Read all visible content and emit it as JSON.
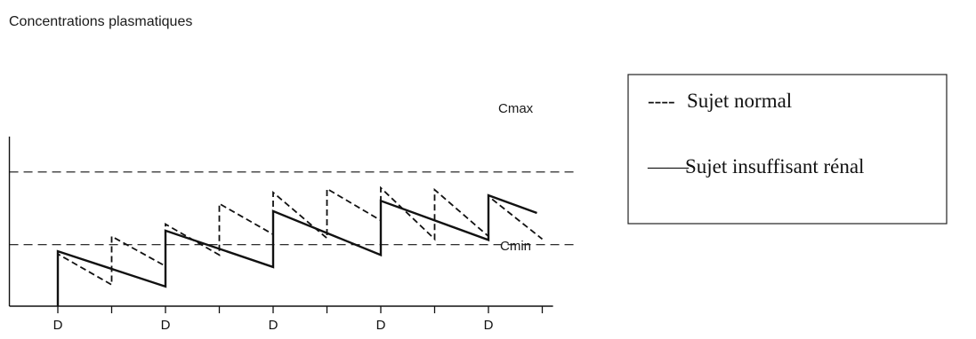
{
  "chart_data": {
    "type": "line",
    "ylabel": "Concentrations plasmatiques",
    "x_ticks": [
      0,
      0.5,
      1,
      1.5,
      2,
      2.5,
      3,
      3.5,
      4,
      4.5
    ],
    "dose_tick_label": "D",
    "dose_ticks": [
      0,
      1,
      2,
      3,
      4
    ],
    "ylim": [
      0,
      10
    ],
    "xlim": [
      -0.45,
      4.6
    ],
    "reference_lines": [
      {
        "label": "Cmax",
        "y": 7.2
      },
      {
        "label": "Cmin",
        "y": 3.3
      }
    ],
    "series": [
      {
        "name": "Sujet normal",
        "style": "dashed",
        "points": [
          [
            0,
            0
          ],
          [
            0,
            2.8
          ],
          [
            0.5,
            1.15
          ],
          [
            0.5,
            3.75
          ],
          [
            1,
            2.15
          ],
          [
            1,
            4.4
          ],
          [
            1.5,
            2.75
          ],
          [
            1.5,
            5.5
          ],
          [
            2,
            3.85
          ],
          [
            2,
            6.1
          ],
          [
            2.5,
            3.65
          ],
          [
            2.5,
            6.3
          ],
          [
            3,
            4.6
          ],
          [
            3,
            6.35
          ],
          [
            3.5,
            3.6
          ],
          [
            3.5,
            6.25
          ],
          [
            4,
            3.75
          ],
          [
            4,
            5.9
          ],
          [
            4.5,
            3.6
          ]
        ]
      },
      {
        "name": "Sujet insuffisant rénal",
        "style": "solid",
        "points": [
          [
            0,
            0
          ],
          [
            0,
            2.95
          ],
          [
            1,
            1.05
          ],
          [
            1,
            4.05
          ],
          [
            2,
            2.1
          ],
          [
            2,
            5.1
          ],
          [
            3,
            2.75
          ],
          [
            3,
            5.65
          ],
          [
            4,
            3.55
          ],
          [
            4,
            5.95
          ],
          [
            4.45,
            5.0
          ]
        ]
      }
    ]
  },
  "legend": {
    "items": [
      {
        "sample": "----",
        "label": "Sujet normal"
      },
      {
        "sample": "——",
        "label": "Sujet insuffisant rénal"
      }
    ]
  }
}
